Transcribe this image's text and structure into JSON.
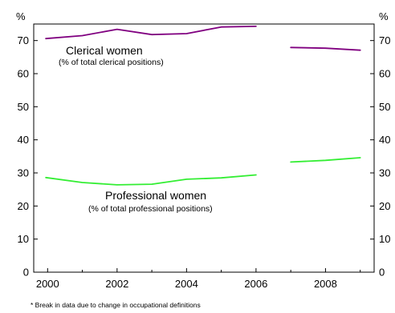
{
  "chart_data": {
    "type": "line",
    "y_unit": "%",
    "ylim": [
      0,
      75
    ],
    "y_ticks": [
      0,
      10,
      20,
      30,
      40,
      50,
      60,
      70
    ],
    "xlim": [
      1999.6,
      2009.4
    ],
    "x_ticks": [
      2000,
      2002,
      2004,
      2006,
      2008
    ],
    "grid": false,
    "series": [
      {
        "name": "Clerical women",
        "subtitle": "(% of total clerical positions)",
        "color": "#800080",
        "segments": [
          {
            "x": [
              1999.95,
              2001,
              2002,
              2003,
              2004,
              2005,
              2006
            ],
            "y": [
              70.6,
              71.5,
              73.4,
              71.8,
              72.1,
              74.1,
              74.3
            ]
          },
          {
            "x": [
              2007,
              2008,
              2009
            ],
            "y": [
              67.9,
              67.7,
              67.1
            ]
          }
        ]
      },
      {
        "name": "Professional women",
        "subtitle": "(% of total professional positions)",
        "color": "#33ee33",
        "segments": [
          {
            "x": [
              1999.95,
              2001,
              2002,
              2003,
              2004,
              2005,
              2006
            ],
            "y": [
              28.6,
              27.1,
              26.4,
              26.6,
              28.1,
              28.5,
              29.4
            ]
          },
          {
            "x": [
              2007,
              2008,
              2009
            ],
            "y": [
              33.3,
              33.8,
              34.6
            ]
          }
        ]
      }
    ]
  },
  "footnote": "* Break in data due to change in occupational definitions"
}
